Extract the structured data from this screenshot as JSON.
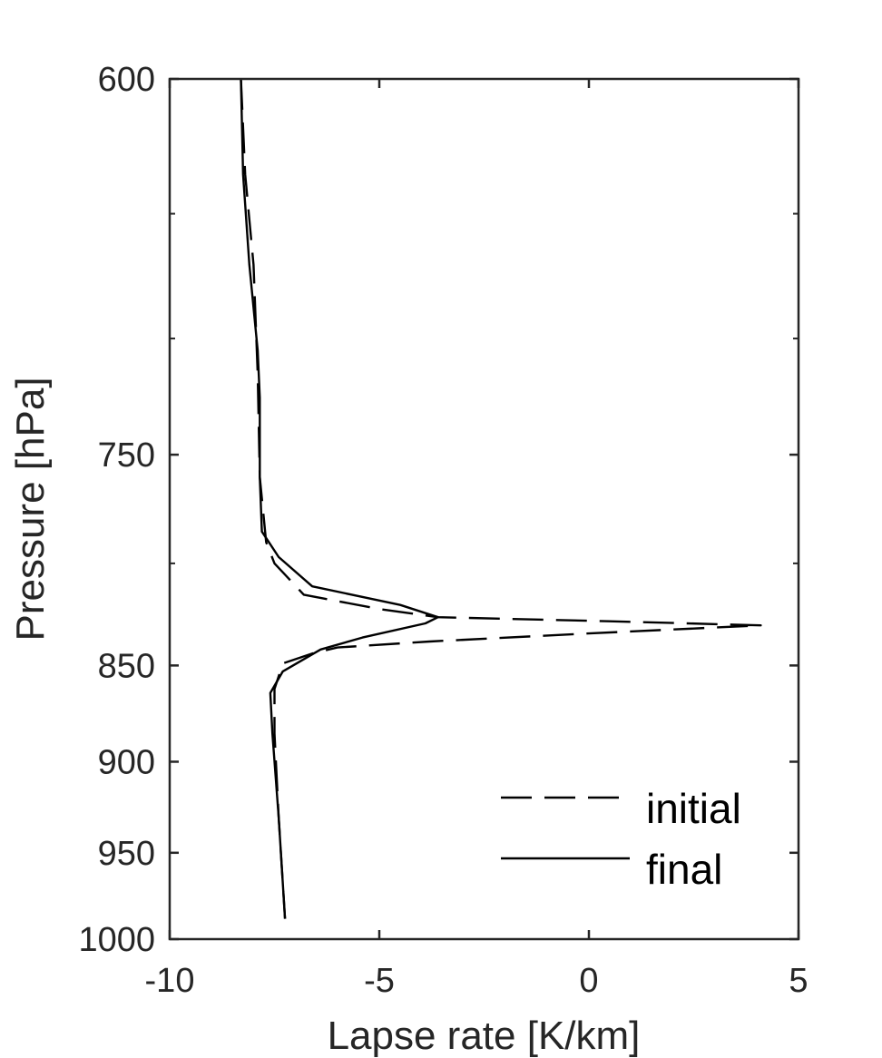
{
  "chart_data": {
    "type": "line",
    "xlabel": "Lapse rate [K/km]",
    "ylabel": "Pressure [hPa]",
    "xlim": [
      -10,
      5
    ],
    "ylim": [
      600,
      1000
    ],
    "y_scale": "log",
    "y_direction": "reversed",
    "x_ticks": [
      -10,
      -5,
      0,
      5
    ],
    "x_tick_labels": [
      "-10",
      "-5",
      "0",
      "5"
    ],
    "y_ticks": [
      600,
      750,
      850,
      900,
      950,
      1000
    ],
    "y_tick_labels": [
      "600",
      "750",
      "850",
      "900",
      "950",
      "1000"
    ],
    "grid": false,
    "legend_position": "bottom-right",
    "colors": {
      "axis": "#262626",
      "series": "#000000"
    },
    "series": [
      {
        "name": "initial",
        "style": "dashed",
        "points": [
          {
            "x": -8.3,
            "y": 600
          },
          {
            "x": -8.2,
            "y": 635
          },
          {
            "x": -8.0,
            "y": 670
          },
          {
            "x": -7.9,
            "y": 715
          },
          {
            "x": -7.85,
            "y": 760
          },
          {
            "x": -7.7,
            "y": 790
          },
          {
            "x": -7.5,
            "y": 800
          },
          {
            "x": -6.8,
            "y": 815
          },
          {
            "x": -5.0,
            "y": 822
          },
          {
            "x": -3.6,
            "y": 826
          },
          {
            "x": 0.5,
            "y": 828
          },
          {
            "x": 4.1,
            "y": 830
          },
          {
            "x": 0.0,
            "y": 834
          },
          {
            "x": -3.8,
            "y": 838
          },
          {
            "x": -6.0,
            "y": 841
          },
          {
            "x": -6.6,
            "y": 844
          },
          {
            "x": -7.3,
            "y": 849
          },
          {
            "x": -7.5,
            "y": 862
          },
          {
            "x": -7.5,
            "y": 885
          },
          {
            "x": -7.4,
            "y": 930
          },
          {
            "x": -7.25,
            "y": 988
          }
        ]
      },
      {
        "name": "final",
        "style": "solid",
        "points": [
          {
            "x": -8.3,
            "y": 600
          },
          {
            "x": -8.25,
            "y": 635
          },
          {
            "x": -8.1,
            "y": 670
          },
          {
            "x": -7.9,
            "y": 705
          },
          {
            "x": -7.85,
            "y": 725
          },
          {
            "x": -7.85,
            "y": 760
          },
          {
            "x": -7.8,
            "y": 785
          },
          {
            "x": -7.4,
            "y": 797
          },
          {
            "x": -6.6,
            "y": 811
          },
          {
            "x": -4.5,
            "y": 820
          },
          {
            "x": -3.6,
            "y": 826
          },
          {
            "x": -3.9,
            "y": 829
          },
          {
            "x": -5.4,
            "y": 836
          },
          {
            "x": -6.4,
            "y": 842
          },
          {
            "x": -7.3,
            "y": 853
          },
          {
            "x": -7.6,
            "y": 864
          },
          {
            "x": -7.55,
            "y": 885
          },
          {
            "x": -7.4,
            "y": 930
          },
          {
            "x": -7.25,
            "y": 988
          }
        ]
      }
    ]
  }
}
